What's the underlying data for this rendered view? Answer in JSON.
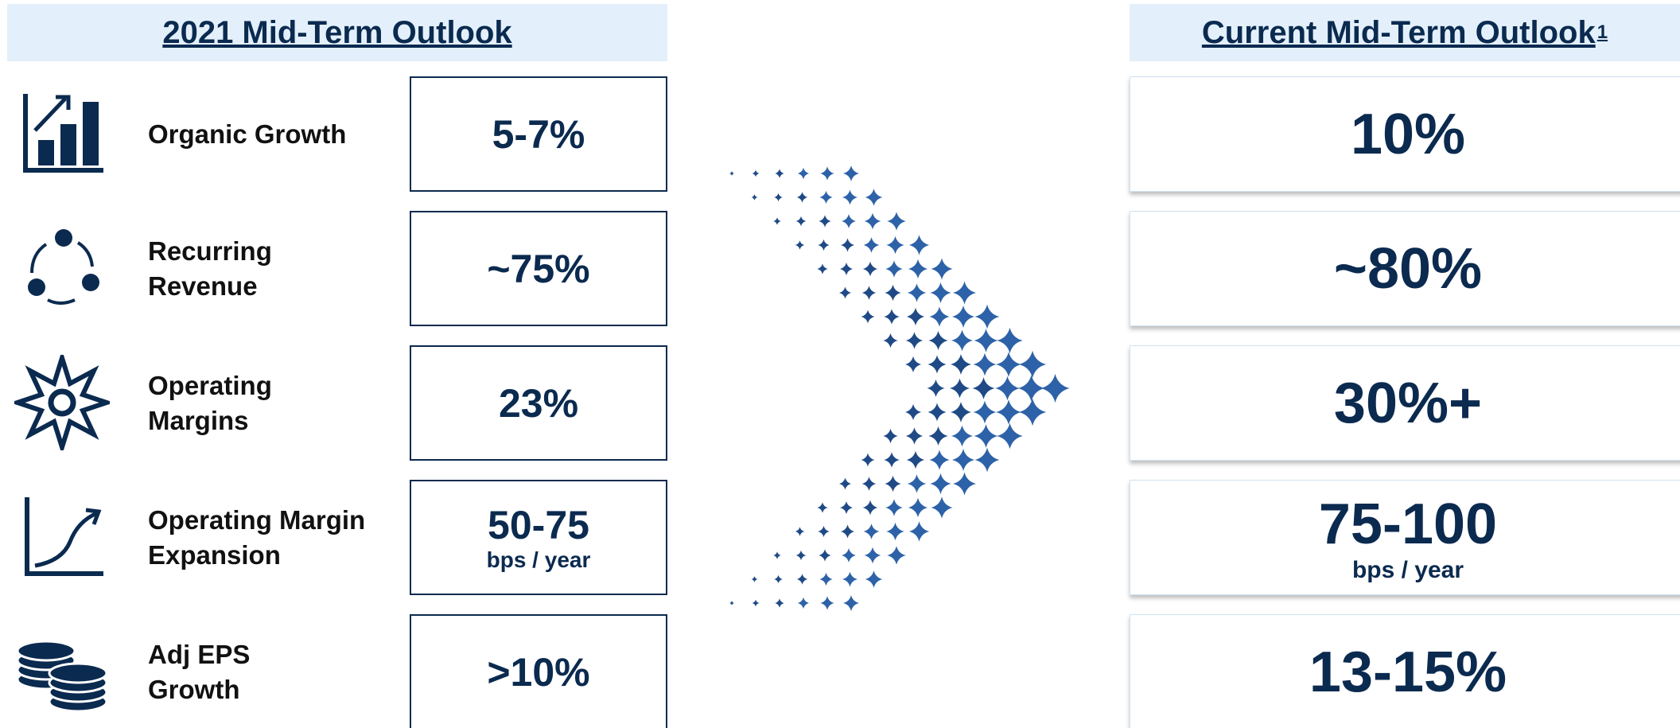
{
  "left": {
    "title": "2021 Mid-Term Outlook",
    "rows": [
      {
        "label": [
          "Organic Growth"
        ],
        "value": "5-7%"
      },
      {
        "label": [
          "Recurring",
          "Revenue"
        ],
        "value": "~75%"
      },
      {
        "label": [
          "Operating",
          "Margins"
        ],
        "value": "23%"
      },
      {
        "label": [
          "Operating Margin",
          "Expansion"
        ],
        "value": "50-75",
        "note": "bps / year"
      },
      {
        "label": [
          "Adj EPS",
          "Growth"
        ],
        "value": ">10%"
      }
    ]
  },
  "right": {
    "title": "Current Mid-Term Outlook",
    "footnote": "1",
    "rows": [
      {
        "value": "10%"
      },
      {
        "value": "~80%"
      },
      {
        "value": "30%+"
      },
      {
        "value": "75-100",
        "note": "bps / year"
      },
      {
        "value": "13-15%"
      }
    ]
  }
}
